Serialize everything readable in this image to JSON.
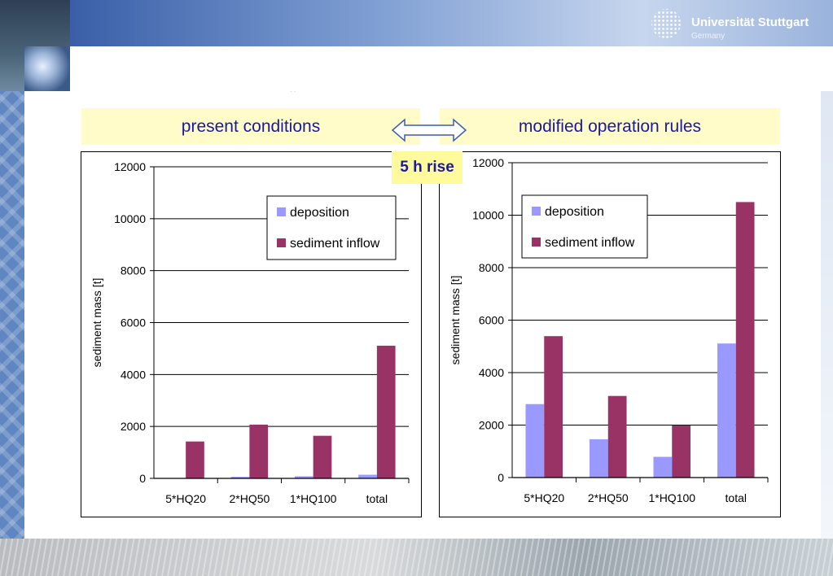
{
  "header": {
    "university": "Universität Stuttgart",
    "country": "Germany"
  },
  "titles": {
    "left": "present conditions",
    "right": "modified operation rules"
  },
  "annotation": "5 h rise",
  "colors": {
    "deposition": "#9999ff",
    "sediment_inflow": "#993366",
    "title_bg": "#fffcc9",
    "title_text": "#1a1aa0"
  },
  "chart_data": [
    {
      "type": "bar",
      "title": "present conditions",
      "categories": [
        "5*HQ20",
        "2*HQ50",
        "1*HQ100",
        "total"
      ],
      "series": [
        {
          "name": "deposition",
          "values": [
            0,
            60,
            80,
            140
          ]
        },
        {
          "name": "sediment inflow",
          "values": [
            1420,
            2070,
            1640,
            5110
          ]
        }
      ],
      "xlabel": "",
      "ylabel": "sediment mass [t]",
      "ylim": [
        0,
        12000
      ],
      "yticks": [
        0,
        2000,
        4000,
        6000,
        8000,
        10000,
        12000
      ],
      "grid": true,
      "legend": "top-right"
    },
    {
      "type": "bar",
      "title": "modified operation rules",
      "categories": [
        "5*HQ20",
        "2*HQ50",
        "1*HQ100",
        "total"
      ],
      "series": [
        {
          "name": "deposition",
          "values": [
            2800,
            1460,
            790,
            5110
          ]
        },
        {
          "name": "sediment inflow",
          "values": [
            5390,
            3110,
            1990,
            10500
          ]
        }
      ],
      "xlabel": "",
      "ylabel": "sediment mass [t]",
      "ylim": [
        0,
        12000
      ],
      "yticks": [
        0,
        2000,
        4000,
        6000,
        8000,
        10000,
        12000
      ],
      "grid": true,
      "legend": "top-left"
    }
  ]
}
